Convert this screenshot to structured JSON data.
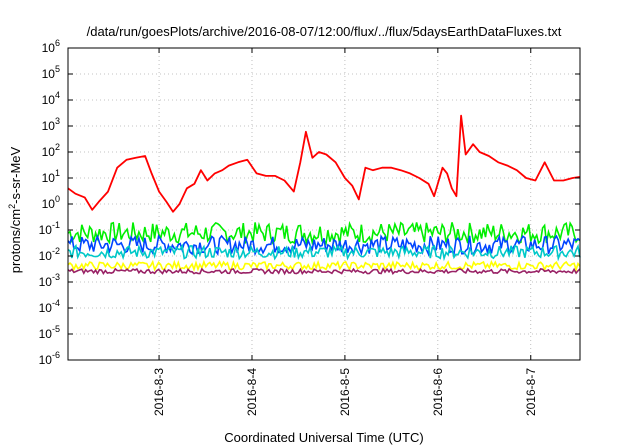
{
  "chart_data": {
    "type": "line",
    "title": "/data/run/goesPlots/archive/2016-08-07/12:00/flux/../flux/5daysEarthDataFluxes.txt",
    "xlabel": "Coordinated Universal Time (UTC)",
    "ylabel_parts": {
      "base": "protons/cm",
      "sup": "2",
      "rest": "-s-sr-MeV"
    },
    "yscale": "log",
    "ylim_exponents": [
      -6,
      6
    ],
    "ytick_labels": [
      {
        "base": "10",
        "exp": "-6"
      },
      {
        "base": "10",
        "exp": "-5"
      },
      {
        "base": "10",
        "exp": "-4"
      },
      {
        "base": "10",
        "exp": "-3"
      },
      {
        "base": "10",
        "exp": "-2"
      },
      {
        "base": "10",
        "exp": "-1"
      },
      {
        "base": "10",
        "exp": "0"
      },
      {
        "base": "10",
        "exp": "1"
      },
      {
        "base": "10",
        "exp": "2"
      },
      {
        "base": "10",
        "exp": "3"
      },
      {
        "base": "10",
        "exp": "4"
      },
      {
        "base": "10",
        "exp": "5"
      },
      {
        "base": "10",
        "exp": "6"
      }
    ],
    "xlim_days": [
      -0.98,
      4.53
    ],
    "xtick_labels": [
      "2016-8-3",
      "2016-8-4",
      "2016-8-5",
      "2016-8-6",
      "2016-8-7"
    ],
    "grid": true,
    "series": [
      {
        "color": "#ff0000",
        "points": [
          [
            -0.98,
            4.0
          ],
          [
            -0.9,
            2.5
          ],
          [
            -0.8,
            1.8
          ],
          [
            -0.72,
            0.6
          ],
          [
            -0.65,
            1.2
          ],
          [
            -0.55,
            3.0
          ],
          [
            -0.45,
            25
          ],
          [
            -0.35,
            50
          ],
          [
            -0.25,
            60
          ],
          [
            -0.15,
            70
          ],
          [
            -0.08,
            15
          ],
          [
            0.0,
            3
          ],
          [
            0.08,
            1.2
          ],
          [
            0.15,
            0.5
          ],
          [
            0.22,
            1.0
          ],
          [
            0.3,
            4
          ],
          [
            0.38,
            6
          ],
          [
            0.45,
            20
          ],
          [
            0.52,
            8
          ],
          [
            0.6,
            15
          ],
          [
            0.68,
            20
          ],
          [
            0.75,
            30
          ],
          [
            0.85,
            40
          ],
          [
            0.95,
            50
          ],
          [
            1.05,
            15
          ],
          [
            1.15,
            12
          ],
          [
            1.25,
            12
          ],
          [
            1.35,
            8
          ],
          [
            1.45,
            3
          ],
          [
            1.52,
            40
          ],
          [
            1.58,
            600
          ],
          [
            1.65,
            60
          ],
          [
            1.72,
            100
          ],
          [
            1.8,
            80
          ],
          [
            1.9,
            40
          ],
          [
            2.0,
            10
          ],
          [
            2.08,
            5
          ],
          [
            2.15,
            1.5
          ],
          [
            2.22,
            25
          ],
          [
            2.3,
            20
          ],
          [
            2.4,
            25
          ],
          [
            2.5,
            25
          ],
          [
            2.6,
            20
          ],
          [
            2.7,
            15
          ],
          [
            2.8,
            10
          ],
          [
            2.9,
            6
          ],
          [
            2.96,
            2
          ],
          [
            3.0,
            6
          ],
          [
            3.05,
            25
          ],
          [
            3.1,
            15
          ],
          [
            3.15,
            4
          ],
          [
            3.2,
            2
          ],
          [
            3.25,
            2500
          ],
          [
            3.3,
            80
          ],
          [
            3.38,
            200
          ],
          [
            3.45,
            100
          ],
          [
            3.55,
            70
          ],
          [
            3.65,
            40
          ],
          [
            3.75,
            30
          ],
          [
            3.85,
            20
          ],
          [
            3.95,
            10
          ],
          [
            4.05,
            8
          ],
          [
            4.15,
            40
          ],
          [
            4.25,
            8
          ],
          [
            4.35,
            8
          ],
          [
            4.45,
            10
          ],
          [
            4.53,
            11
          ]
        ]
      }
    ],
    "bands": [
      {
        "color": "#00ee00",
        "low": 0.03,
        "high": 0.2
      },
      {
        "color": "#0044ff",
        "low": 0.012,
        "high": 0.06
      },
      {
        "color": "#00c8c8",
        "low": 0.008,
        "high": 0.025
      },
      {
        "color": "#ffff00",
        "low": 0.003,
        "high": 0.006
      },
      {
        "color": "#992266",
        "low": 0.0021,
        "high": 0.0032
      }
    ]
  }
}
